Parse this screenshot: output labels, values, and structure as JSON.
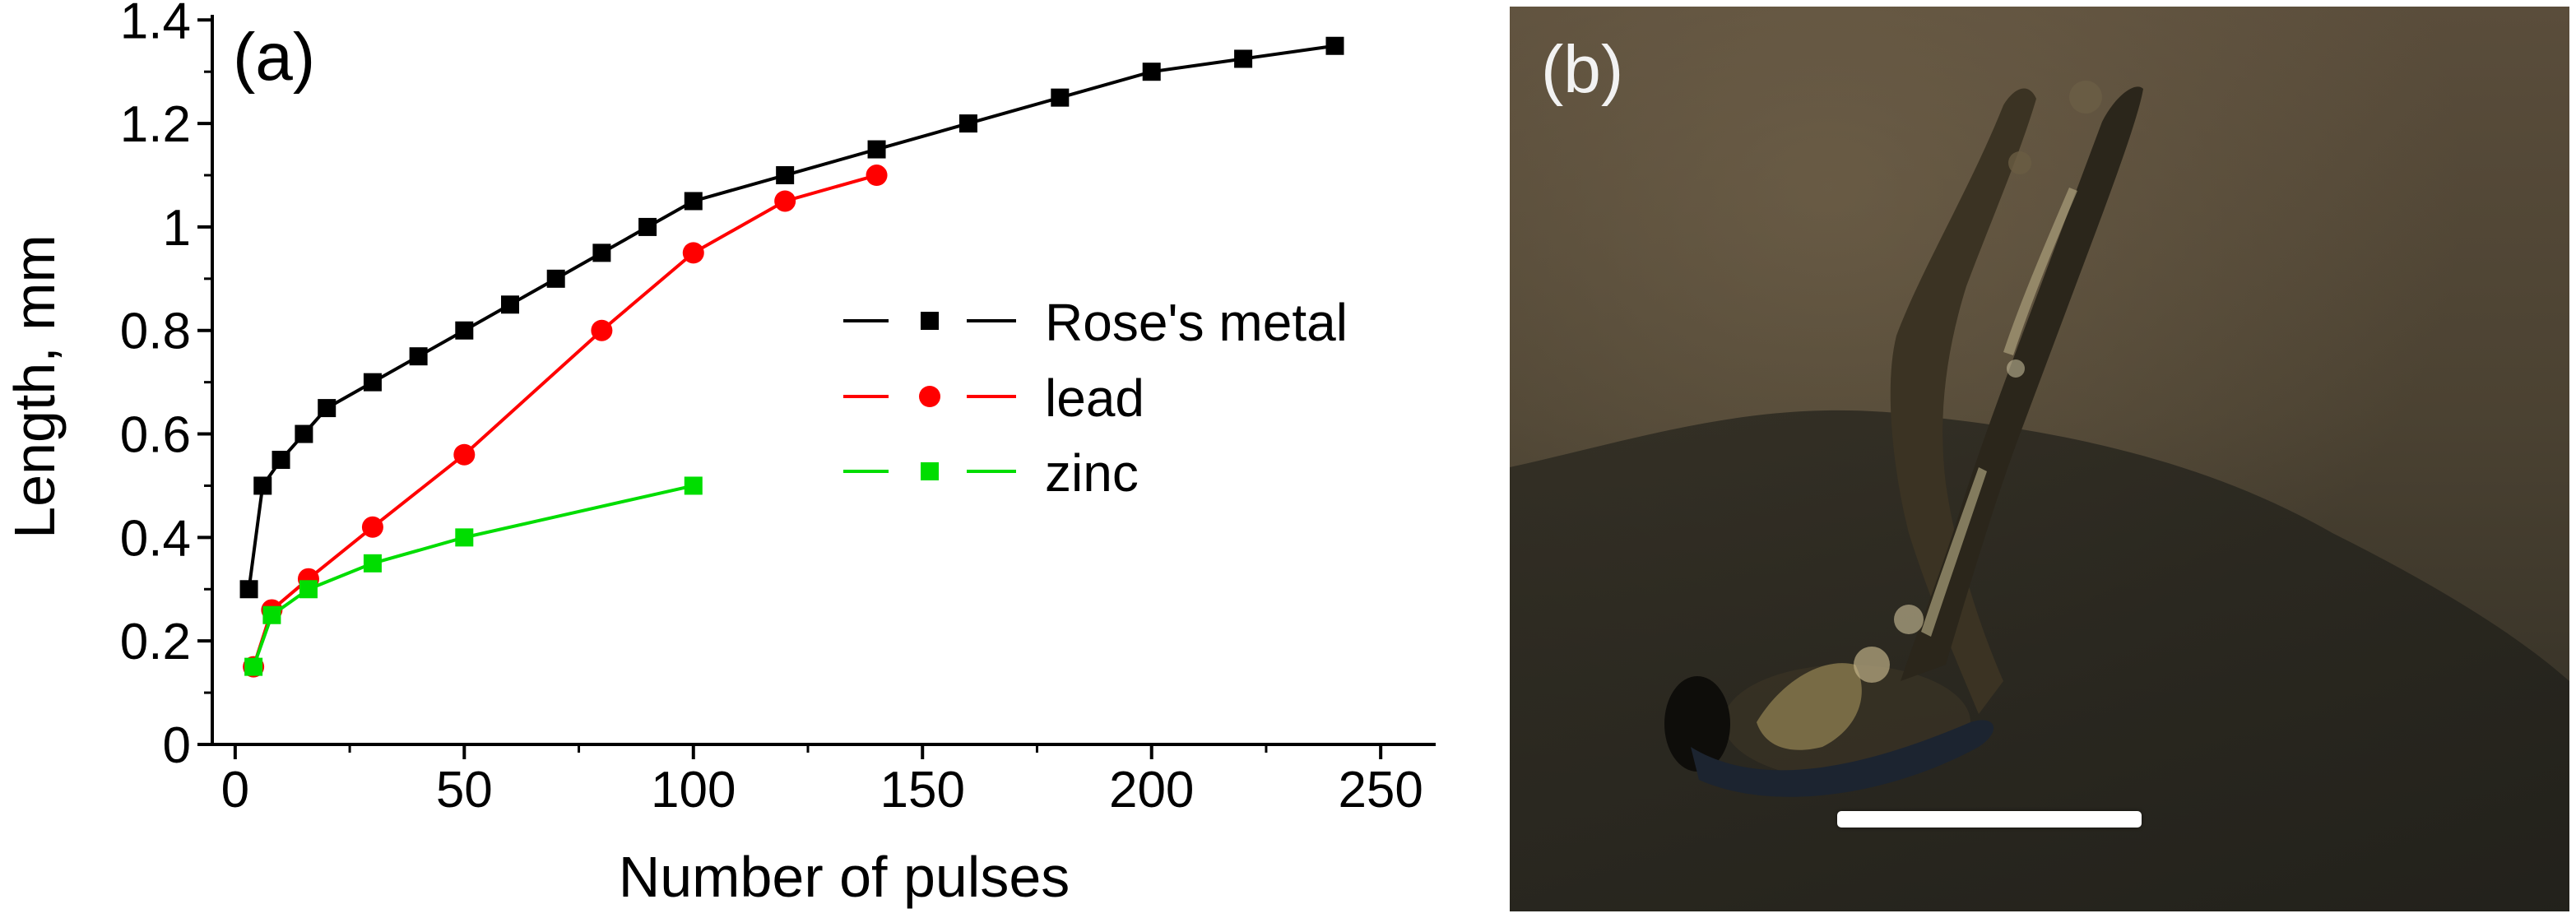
{
  "panel_a_label": "(a)",
  "panel_b_label": "(b)",
  "chart_data": {
    "type": "line",
    "title": "",
    "xlabel": "Number of pulses",
    "ylabel": "Length, mm",
    "xlim": [
      -5,
      262
    ],
    "ylim": [
      0,
      1.41
    ],
    "xticks": [
      0,
      50,
      100,
      150,
      200,
      250
    ],
    "xtick_labels": [
      "0",
      "50",
      "100",
      "150",
      "200",
      "250"
    ],
    "yticks": [
      0,
      0.2,
      0.4,
      0.6,
      0.8,
      1,
      1.2,
      1.4
    ],
    "ytick_labels": [
      "0",
      "0.2",
      "0.4",
      "0.6",
      "0.8",
      "1",
      "1.2",
      "1.4"
    ],
    "grid": false,
    "legend_position": "right",
    "series": [
      {
        "name": "Rose's metal",
        "color": "#000000",
        "marker": "square",
        "x": [
          3,
          6,
          10,
          15,
          20,
          30,
          40,
          50,
          60,
          70,
          80,
          90,
          100,
          120,
          140,
          160,
          180,
          200,
          220,
          240
        ],
        "y": [
          0.3,
          0.5,
          0.55,
          0.6,
          0.65,
          0.7,
          0.75,
          0.8,
          0.85,
          0.9,
          0.95,
          1.0,
          1.05,
          1.1,
          1.15,
          1.2,
          1.25,
          1.3,
          1.325,
          1.35
        ]
      },
      {
        "name": "lead",
        "color": "#ff0000",
        "marker": "circle",
        "x": [
          4,
          8,
          16,
          30,
          50,
          80,
          100,
          120,
          140
        ],
        "y": [
          0.15,
          0.26,
          0.32,
          0.42,
          0.56,
          0.8,
          0.95,
          1.05,
          1.1
        ]
      },
      {
        "name": "zinc",
        "color": "#00dd00",
        "marker": "square",
        "x": [
          4,
          8,
          16,
          30,
          50,
          100
        ],
        "y": [
          0.15,
          0.25,
          0.3,
          0.35,
          0.4,
          0.5
        ]
      }
    ]
  }
}
